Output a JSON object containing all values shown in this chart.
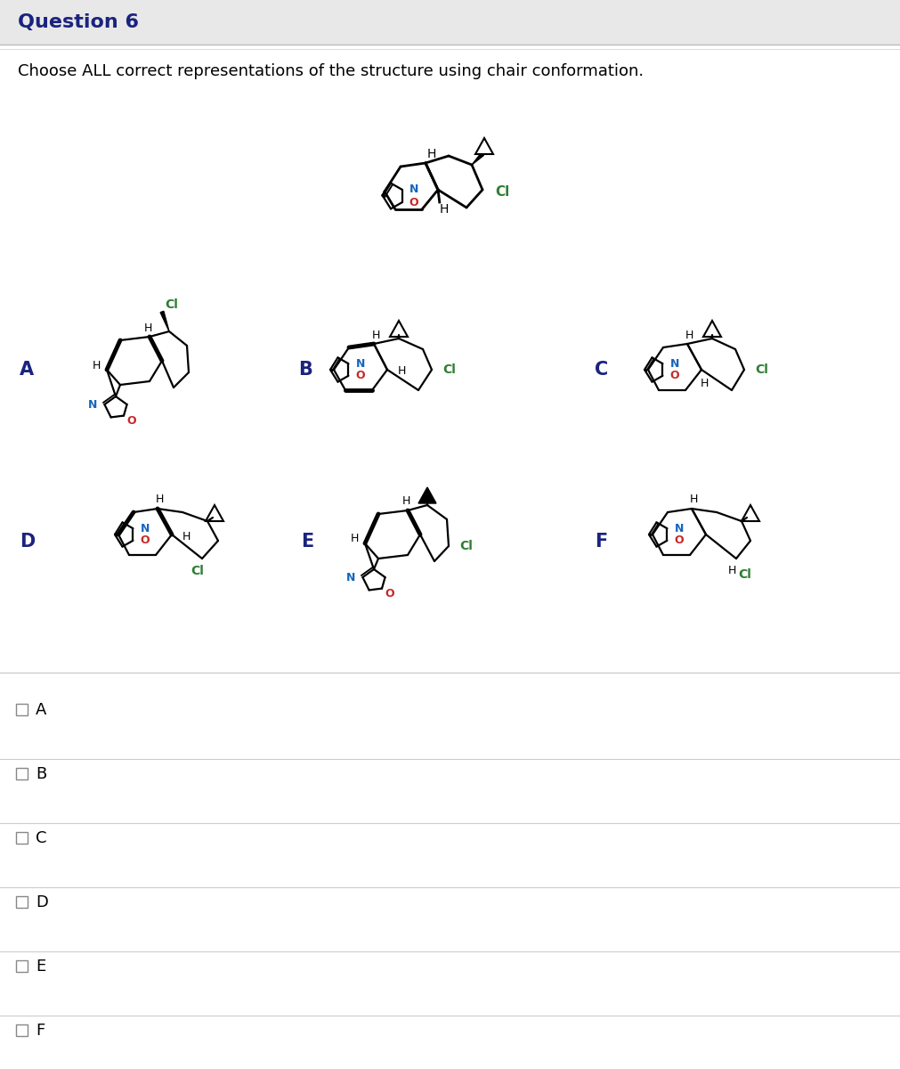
{
  "title": "Question 6",
  "question_text": "Choose ALL correct representations of the structure using chair conformation.",
  "options": [
    "A",
    "B",
    "C",
    "D",
    "E",
    "F"
  ],
  "bg_color": "#ffffff",
  "header_bg": "#e8e8e8",
  "title_color": "#1a237e",
  "text_color": "#000000",
  "option_line_color": "#cccccc",
  "checkbox_color": "#888888",
  "green_color": "#2e7d32",
  "blue_color": "#1565c0",
  "red_color": "#c62828",
  "label_color": "#1a237e",
  "fig_width": 10.12,
  "fig_height": 12.0,
  "dpi": 100
}
